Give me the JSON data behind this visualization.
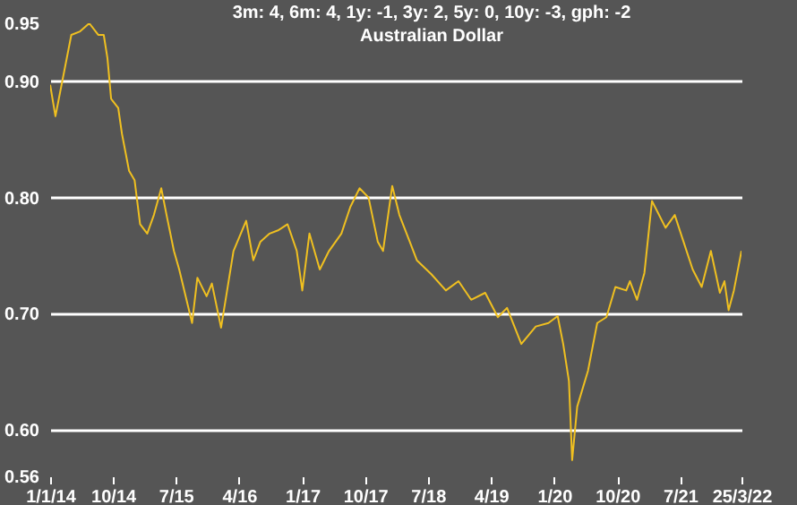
{
  "chart_data": {
    "type": "line",
    "title": "3m: 4,   6m: 4,   1y: -1,   3y: 2,   5y: 0,   10y: -3,   gph: -2",
    "subtitle": "Australian Dollar",
    "x": [
      "2014-01-01",
      "2014-01-24",
      "2014-04-03",
      "2014-05-11",
      "2014-06-20",
      "2014-07-29",
      "2014-08-22",
      "2014-09-07",
      "2014-09-23",
      "2014-10-24",
      "2014-11-09",
      "2014-12-10",
      "2015-01-03",
      "2015-01-27",
      "2015-02-27",
      "2015-03-28",
      "2015-04-29",
      "2015-05-22",
      "2015-06-23",
      "2015-07-16",
      "2015-09-10",
      "2015-10-03",
      "2015-11-12",
      "2015-12-05",
      "2016-01-14",
      "2016-03-08",
      "2016-05-02",
      "2016-06-02",
      "2016-07-03",
      "2016-08-12",
      "2016-09-20",
      "2016-10-29",
      "2016-12-08",
      "2017-01-01",
      "2017-02-01",
      "2017-03-18",
      "2017-04-27",
      "2017-06-20",
      "2017-07-29",
      "2017-09-07",
      "2017-10-16",
      "2017-11-25",
      "2017-12-18",
      "2018-01-27",
      "2018-02-27",
      "2018-04-13",
      "2018-05-14",
      "2018-07-16",
      "2018-09-17",
      "2018-11-11",
      "2019-01-05",
      "2019-03-07",
      "2019-05-01",
      "2019-06-10",
      "2019-08-11",
      "2019-10-13",
      "2019-12-07",
      "2020-01-16",
      "2020-02-09",
      "2020-03-05",
      "2020-03-19",
      "2020-04-10",
      "2020-05-27",
      "2020-07-06",
      "2020-08-15",
      "2020-09-23",
      "2020-11-09",
      "2020-11-25",
      "2020-12-26",
      "2021-01-27",
      "2021-03-01",
      "2021-04-29",
      "2021-06-08",
      "2021-07-16",
      "2021-08-25",
      "2021-10-03",
      "2021-11-12",
      "2021-12-21",
      "2022-01-10",
      "2022-01-28",
      "2022-02-20",
      "2022-03-25"
    ],
    "series": [
      {
        "color": "#f0c020",
        "values": [
          0.897,
          0.87,
          0.94,
          0.943,
          0.95,
          0.94,
          0.94,
          0.92,
          0.885,
          0.877,
          0.855,
          0.823,
          0.815,
          0.777,
          0.769,
          0.785,
          0.808,
          0.785,
          0.754,
          0.738,
          0.692,
          0.731,
          0.715,
          0.726,
          0.688,
          0.754,
          0.78,
          0.746,
          0.762,
          0.769,
          0.772,
          0.777,
          0.754,
          0.72,
          0.769,
          0.738,
          0.754,
          0.769,
          0.792,
          0.808,
          0.8,
          0.762,
          0.754,
          0.81,
          0.785,
          0.762,
          0.746,
          0.734,
          0.72,
          0.728,
          0.712,
          0.718,
          0.697,
          0.705,
          0.674,
          0.689,
          0.692,
          0.698,
          0.674,
          0.642,
          0.574,
          0.62,
          0.651,
          0.692,
          0.697,
          0.723,
          0.72,
          0.728,
          0.712,
          0.735,
          0.797,
          0.774,
          0.785,
          0.762,
          0.738,
          0.723,
          0.754,
          0.718,
          0.728,
          0.703,
          0.72,
          0.754
        ]
      }
    ],
    "ylim": [
      0.56,
      0.95
    ],
    "yticks": [
      0.56,
      {
        "value": 0.6,
        "label": "0.60"
      },
      {
        "value": 0.7,
        "label": "0.70"
      },
      {
        "value": 0.8,
        "label": "0.80"
      },
      {
        "value": 0.9,
        "label": "0.90"
      },
      0.95
    ],
    "xlim": [
      "2014-01-01",
      "2022-03-25"
    ],
    "xticks": [
      {
        "value": "2014-01-01",
        "label": "1/1/14"
      },
      {
        "value": "2014-10-01",
        "label": "10/14"
      },
      {
        "value": "2015-07-01",
        "label": "7/15"
      },
      {
        "value": "2016-04-01",
        "label": "4/16"
      },
      {
        "value": "2017-01-01",
        "label": "1/17"
      },
      {
        "value": "2017-10-01",
        "label": "10/17"
      },
      {
        "value": "2018-07-01",
        "label": "7/18"
      },
      {
        "value": "2019-04-01",
        "label": "4/19"
      },
      {
        "value": "2020-01-01",
        "label": "1/20"
      },
      {
        "value": "2020-10-01",
        "label": "10/20"
      },
      {
        "value": "2021-07-01",
        "label": "7/21"
      },
      {
        "value": "2022-03-25",
        "label": "25/3/22"
      }
    ],
    "grid": "y",
    "marker": "none",
    "line_style": "solid"
  }
}
